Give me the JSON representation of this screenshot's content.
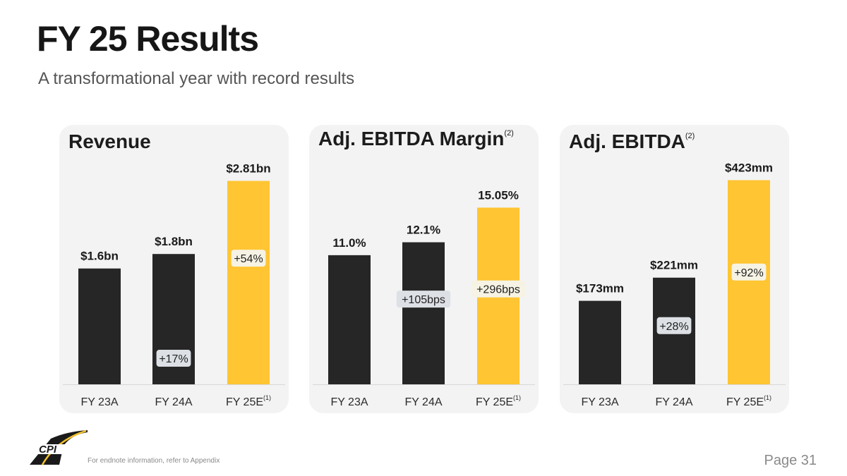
{
  "header": {
    "title": "FY 25 Results",
    "subtitle": "A transformational year with record results"
  },
  "footer": {
    "endnote": "For endnote information, refer to Appendix",
    "page": "Page 31",
    "logo_text": "CPI"
  },
  "colors": {
    "actual_bar": "#262626",
    "estimate_bar": "#ffc532",
    "panel_bg": "#f3f3f3",
    "growth_badge_dark": "#dde1e5",
    "growth_badge_light": "#f6f3e4"
  },
  "chart_data": [
    {
      "type": "bar",
      "title": "Revenue",
      "title_footnote": "",
      "categories": [
        "FY 23A",
        "FY 24A",
        "FY 25E"
      ],
      "category_footnotes": [
        "",
        "",
        "(1)"
      ],
      "values": [
        1.6,
        1.8,
        2.81
      ],
      "units": "$bn",
      "value_labels": [
        "$1.6bn",
        "$1.8bn",
        "$2.81bn"
      ],
      "growth_labels": [
        "",
        "+17%",
        "+54%"
      ],
      "ylim": [
        0,
        3.0
      ],
      "grid": false
    },
    {
      "type": "bar",
      "title": "Adj. EBITDA Margin",
      "title_footnote": "(2)",
      "categories": [
        "FY 23A",
        "FY 24A",
        "FY 25E"
      ],
      "category_footnotes": [
        "",
        "",
        "(1)"
      ],
      "values": [
        11.0,
        12.1,
        15.05
      ],
      "units": "%",
      "value_labels": [
        "11.0%",
        "12.1%",
        "15.05%"
      ],
      "growth_labels": [
        "",
        "+105bps",
        "+296bps"
      ],
      "ylim": [
        0,
        18.5
      ],
      "grid": false
    },
    {
      "type": "bar",
      "title": "Adj. EBITDA",
      "title_footnote": "(2)",
      "categories": [
        "FY 23A",
        "FY 24A",
        "FY 25E"
      ],
      "category_footnotes": [
        "",
        "",
        "(1)"
      ],
      "values": [
        173,
        221,
        423
      ],
      "units": "$mm",
      "value_labels": [
        "$173mm",
        "$221mm",
        "$423mm"
      ],
      "growth_labels": [
        "",
        "+28%",
        "+92%"
      ],
      "ylim": [
        0,
        450
      ],
      "grid": false
    }
  ]
}
